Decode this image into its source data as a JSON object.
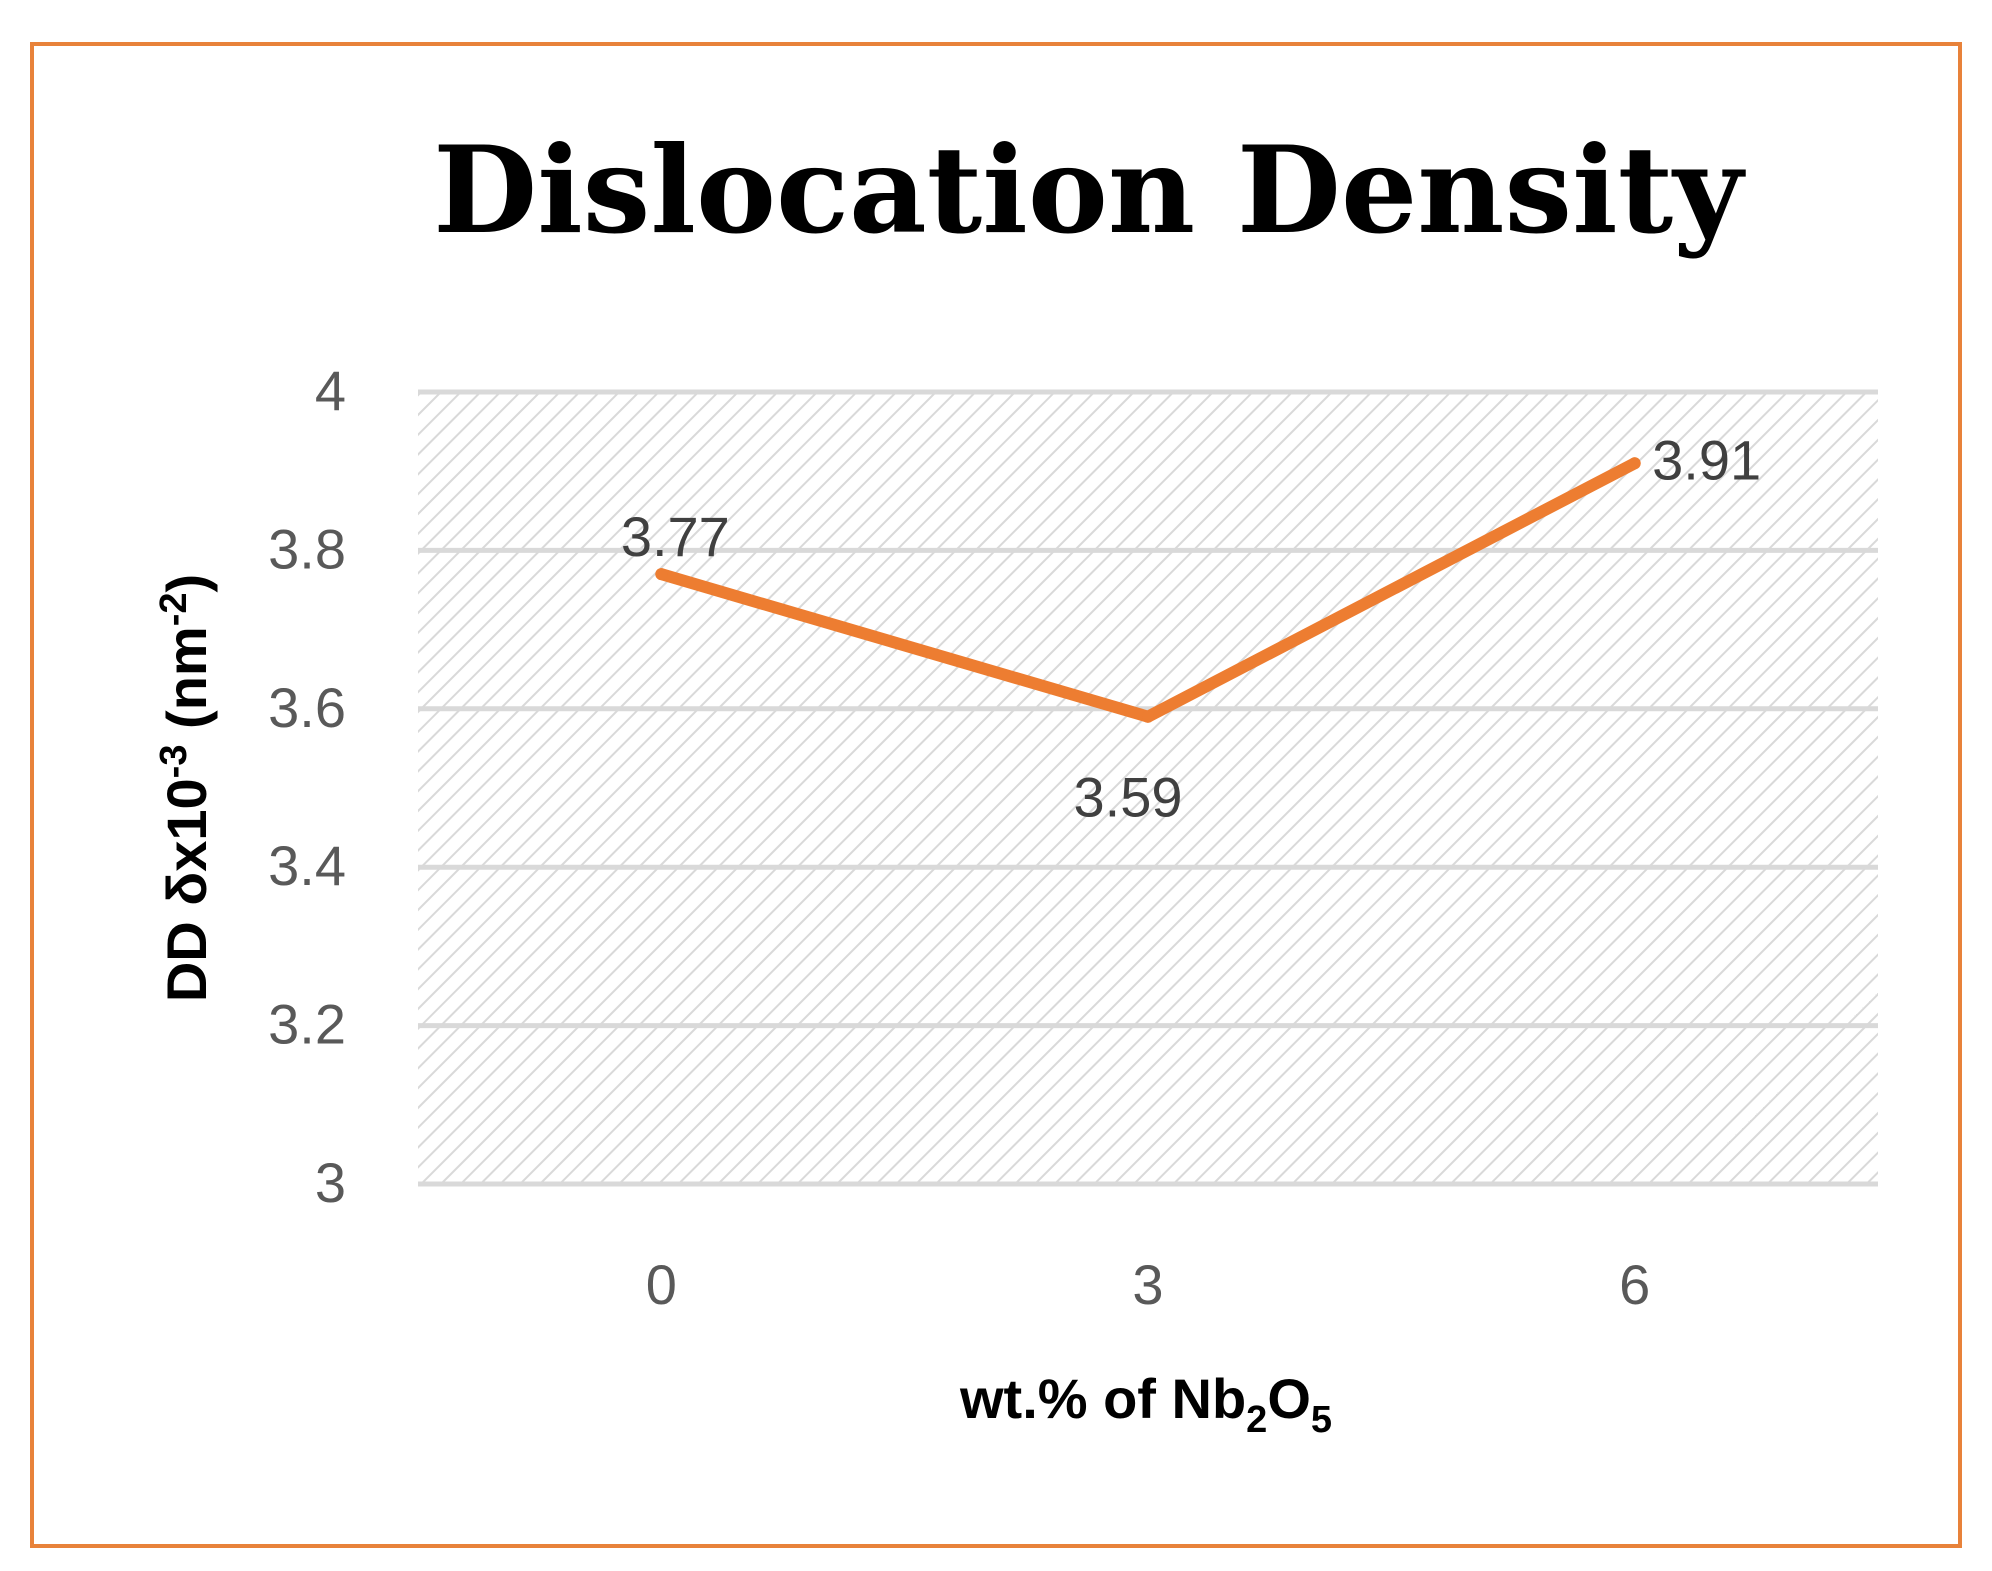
{
  "chart_data": {
    "type": "line",
    "title": "Dislocation Density",
    "categories": [
      "0",
      "3",
      "6"
    ],
    "x": [
      0,
      3,
      6
    ],
    "series": [
      {
        "name": "Dislocation Density",
        "values": [
          3.77,
          3.59,
          3.91
        ],
        "labels": [
          "3.77",
          "3.59",
          "3.91"
        ]
      }
    ],
    "ylim": [
      3,
      4
    ],
    "yticks": [
      3,
      3.2,
      3.4,
      3.6,
      3.8,
      4
    ],
    "ytick_labels": [
      "3",
      "3.2",
      "3.4",
      "3.6",
      "3.8",
      "4"
    ],
    "xlabel": {
      "main": "wt.% of Nb",
      "sub1": "2",
      "mid": "O",
      "sub2": "5"
    },
    "ylabel": {
      "main": "DD δx10",
      "sup1": "-3",
      "mid": " (nm",
      "sup2": "-2",
      "end": ")"
    },
    "grid": true,
    "legend": "none"
  },
  "colors": {
    "border": "#e8823a",
    "line": "#ed7d31",
    "grid": "#d9d9d9",
    "hatch": "#d9d9d9",
    "tick_text": "#595959",
    "label_text": "#404040",
    "title_text": "#000000"
  }
}
